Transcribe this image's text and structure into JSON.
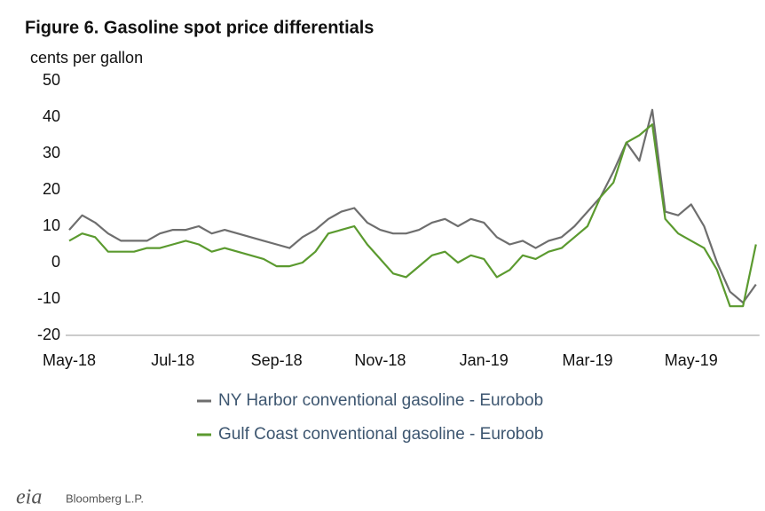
{
  "chart_data": {
    "type": "line",
    "title": "Figure 6. Gasoline spot price differentials",
    "y_axis_label": "cents per gallon",
    "categories": [
      "May-18",
      null,
      null,
      null,
      null,
      null,
      null,
      null,
      "Jul-18",
      null,
      null,
      null,
      null,
      null,
      null,
      null,
      "Sep-18",
      null,
      null,
      null,
      null,
      null,
      null,
      null,
      "Nov-18",
      null,
      null,
      null,
      null,
      null,
      null,
      null,
      "Jan-19",
      null,
      null,
      null,
      null,
      null,
      null,
      null,
      "Mar-19",
      null,
      null,
      null,
      null,
      null,
      null,
      null,
      "May-19",
      null,
      null,
      null,
      null,
      null
    ],
    "series": [
      {
        "name": "NY Harbor conventional gasoline - Eurobob",
        "color": "#6e6e6e",
        "values": [
          9,
          13,
          11,
          8,
          6,
          6,
          6,
          8,
          9,
          9,
          10,
          8,
          9,
          8,
          7,
          6,
          5,
          4,
          7,
          9,
          12,
          14,
          15,
          11,
          9,
          8,
          8,
          9,
          11,
          12,
          10,
          12,
          11,
          7,
          5,
          6,
          4,
          6,
          7,
          10,
          14,
          18,
          25,
          33,
          28,
          42,
          14,
          13,
          16,
          10,
          0,
          -8,
          -11,
          -6
        ]
      },
      {
        "name": "Gulf Coast conventional gasoline - Eurobob",
        "color": "#5b9a2f",
        "values": [
          6,
          8,
          7,
          3,
          3,
          3,
          4,
          4,
          5,
          6,
          5,
          3,
          4,
          3,
          2,
          1,
          -1,
          -1,
          0,
          3,
          8,
          9,
          10,
          5,
          1,
          -3,
          -4,
          -1,
          2,
          3,
          0,
          2,
          1,
          -4,
          -2,
          2,
          1,
          3,
          4,
          7,
          10,
          18,
          22,
          33,
          35,
          38,
          12,
          8,
          6,
          4,
          -2,
          -12,
          -12,
          5
        ]
      }
    ],
    "ylim": [
      -20,
      50
    ],
    "yticks": [
      -20,
      -10,
      0,
      10,
      20,
      30,
      40,
      50
    ],
    "grid": false,
    "source": "Bloomberg L.P.",
    "logo": "eia"
  }
}
